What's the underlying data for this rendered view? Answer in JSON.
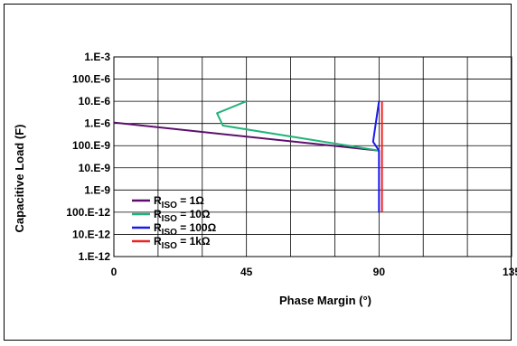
{
  "chart_data": {
    "type": "line",
    "xlabel": "Phase Margin (°)",
    "ylabel": "Capacitive Load (F)",
    "x_ticks": [
      0,
      45,
      90,
      135
    ],
    "x_tick_labels": [
      "0",
      "45",
      "90",
      "135"
    ],
    "xlim": [
      0,
      135
    ],
    "y_scale": "log",
    "y_tick_labels": [
      "1.E-3",
      "100.E-6",
      "10.E-6",
      "1.E-6",
      "100.E-9",
      "10.E-9",
      "1.E-9",
      "100.E-12",
      "10.E-12",
      "1.E-12"
    ],
    "y_tick_values": [
      0.001,
      0.0001,
      1e-05,
      1e-06,
      1e-07,
      1e-08,
      1e-09,
      1e-10,
      1e-11,
      1e-12
    ],
    "ylim": [
      1e-12,
      0.001
    ],
    "grid": true,
    "legend_position": "bottom-left",
    "series": [
      {
        "name": "RISO = 1Ω",
        "label_main": "R",
        "label_sub": "ISO",
        "label_rest": " = 1Ω",
        "color": "#5b0f6b",
        "points": [
          [
            0,
            1.1e-06
          ],
          [
            90,
            6e-08
          ]
        ]
      },
      {
        "name": "RISO = 10Ω",
        "label_main": "R",
        "label_sub": "ISO",
        "label_rest": " = 10Ω",
        "color": "#22b37a",
        "points": [
          [
            45,
            1e-05
          ],
          [
            35,
            2.9e-06
          ],
          [
            37,
            8e-07
          ],
          [
            90,
            6e-08
          ]
        ]
      },
      {
        "name": "RISO = 100Ω",
        "label_main": "R",
        "label_sub": "ISO",
        "label_rest": " = 100Ω",
        "color": "#1a1aee",
        "points": [
          [
            90,
            1e-05
          ],
          [
            88,
            1.5e-07
          ],
          [
            90,
            6e-08
          ],
          [
            90,
            1e-10
          ]
        ]
      },
      {
        "name": "RISO = 1kΩ",
        "label_main": "R",
        "label_sub": "ISO",
        "label_rest": " = 1kΩ",
        "color": "#ee2222",
        "points": [
          [
            91,
            1e-05
          ],
          [
            91,
            1e-10
          ]
        ]
      }
    ]
  }
}
